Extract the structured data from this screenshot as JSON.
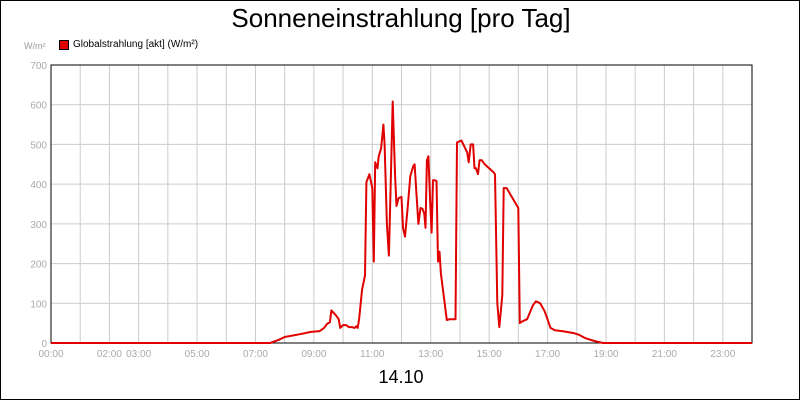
{
  "title": "Sonneneinstrahlung [pro Tag]",
  "unit_label": "W/m²",
  "legend": {
    "label": "Globalstrahlung [akt] (W/m²)",
    "color": "#e00000"
  },
  "date_label": "14.10",
  "chart_data": {
    "type": "line",
    "title": "Sonneneinstrahlung [pro Tag]",
    "xlabel": "14.10",
    "ylabel": "W/m²",
    "xlim": [
      0,
      24
    ],
    "ylim": [
      0,
      700
    ],
    "grid": true,
    "legend_position": "top-left",
    "y_ticks": [
      0,
      100,
      200,
      300,
      400,
      500,
      600,
      700
    ],
    "x_ticks": [
      {
        "x": 0,
        "label": "00:00"
      },
      {
        "x": 2,
        "label": "02:00"
      },
      {
        "x": 3,
        "label": "03:00"
      },
      {
        "x": 5,
        "label": "05:00"
      },
      {
        "x": 7,
        "label": "07:00"
      },
      {
        "x": 9,
        "label": "09:00"
      },
      {
        "x": 11,
        "label": "11:00"
      },
      {
        "x": 13,
        "label": "13:00"
      },
      {
        "x": 15,
        "label": "15:00"
      },
      {
        "x": 17,
        "label": "17:00"
      },
      {
        "x": 19,
        "label": "19:00"
      },
      {
        "x": 21,
        "label": "21:00"
      },
      {
        "x": 23,
        "label": "23:00"
      }
    ],
    "series": [
      {
        "name": "Globalstrahlung [akt] (W/m²)",
        "color": "#e00000",
        "points": [
          [
            0,
            0
          ],
          [
            7.5,
            0
          ],
          [
            7.8,
            8
          ],
          [
            8.0,
            15
          ],
          [
            8.5,
            22
          ],
          [
            8.9,
            28
          ],
          [
            9.2,
            30
          ],
          [
            9.35,
            38
          ],
          [
            9.45,
            48
          ],
          [
            9.55,
            52
          ],
          [
            9.6,
            82
          ],
          [
            9.75,
            70
          ],
          [
            9.85,
            60
          ],
          [
            9.9,
            38
          ],
          [
            10.0,
            45
          ],
          [
            10.1,
            45
          ],
          [
            10.2,
            40
          ],
          [
            10.3,
            40
          ],
          [
            10.4,
            38
          ],
          [
            10.45,
            42
          ],
          [
            10.5,
            38
          ],
          [
            10.55,
            60
          ],
          [
            10.65,
            135
          ],
          [
            10.75,
            170
          ],
          [
            10.8,
            405
          ],
          [
            10.9,
            425
          ],
          [
            11.0,
            390
          ],
          [
            11.05,
            205
          ],
          [
            11.1,
            455
          ],
          [
            11.18,
            440
          ],
          [
            11.22,
            470
          ],
          [
            11.3,
            490
          ],
          [
            11.38,
            550
          ],
          [
            11.42,
            500
          ],
          [
            11.5,
            300
          ],
          [
            11.57,
            220
          ],
          [
            11.63,
            400
          ],
          [
            11.7,
            608
          ],
          [
            11.78,
            420
          ],
          [
            11.83,
            345
          ],
          [
            11.9,
            365
          ],
          [
            12.0,
            368
          ],
          [
            12.05,
            290
          ],
          [
            12.12,
            268
          ],
          [
            12.2,
            330
          ],
          [
            12.3,
            420
          ],
          [
            12.4,
            445
          ],
          [
            12.45,
            450
          ],
          [
            12.5,
            390
          ],
          [
            12.58,
            300
          ],
          [
            12.65,
            340
          ],
          [
            12.72,
            338
          ],
          [
            12.78,
            325
          ],
          [
            12.82,
            290
          ],
          [
            12.87,
            460
          ],
          [
            12.92,
            470
          ],
          [
            12.98,
            360
          ],
          [
            13.03,
            278
          ],
          [
            13.08,
            410
          ],
          [
            13.13,
            410
          ],
          [
            13.2,
            408
          ],
          [
            13.25,
            205
          ],
          [
            13.3,
            230
          ],
          [
            13.35,
            175
          ],
          [
            13.45,
            115
          ],
          [
            13.55,
            58
          ],
          [
            13.65,
            60
          ],
          [
            13.85,
            60
          ],
          [
            13.9,
            505
          ],
          [
            14.05,
            510
          ],
          [
            14.15,
            495
          ],
          [
            14.25,
            480
          ],
          [
            14.3,
            455
          ],
          [
            14.37,
            500
          ],
          [
            14.45,
            500
          ],
          [
            14.5,
            440
          ],
          [
            14.55,
            440
          ],
          [
            14.62,
            425
          ],
          [
            14.67,
            460
          ],
          [
            14.75,
            460
          ],
          [
            14.85,
            450
          ],
          [
            15.0,
            440
          ],
          [
            15.15,
            430
          ],
          [
            15.2,
            425
          ],
          [
            15.28,
            100
          ],
          [
            15.35,
            40
          ],
          [
            15.45,
            120
          ],
          [
            15.5,
            390
          ],
          [
            15.6,
            390
          ],
          [
            16.0,
            340
          ],
          [
            16.05,
            50
          ],
          [
            16.15,
            55
          ],
          [
            16.3,
            60
          ],
          [
            16.5,
            95
          ],
          [
            16.6,
            105
          ],
          [
            16.75,
            100
          ],
          [
            16.9,
            80
          ],
          [
            17.0,
            60
          ],
          [
            17.1,
            38
          ],
          [
            17.25,
            32
          ],
          [
            17.5,
            30
          ],
          [
            17.9,
            25
          ],
          [
            18.1,
            20
          ],
          [
            18.3,
            12
          ],
          [
            18.6,
            5
          ],
          [
            18.9,
            0
          ],
          [
            24,
            0
          ]
        ]
      }
    ]
  }
}
